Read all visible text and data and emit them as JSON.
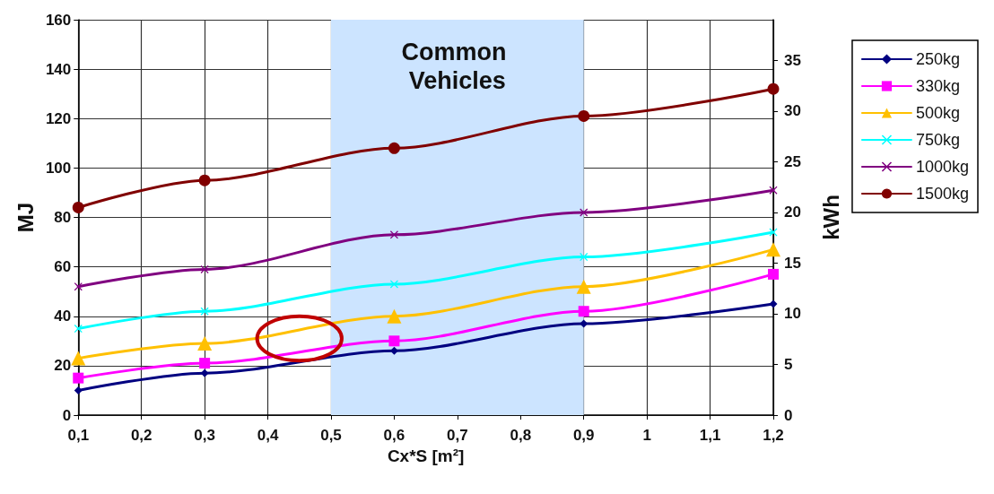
{
  "chart_data": {
    "type": "line",
    "xlabel": "Cx*S [m²]",
    "ylabel": "MJ",
    "y2label": "kWh",
    "x": [
      0.1,
      0.3,
      0.6,
      0.9,
      1.2
    ],
    "series": [
      {
        "name": "250kg",
        "color": "#000080",
        "marker": "diamond",
        "values": [
          10,
          17,
          26,
          37,
          45
        ]
      },
      {
        "name": "330kg",
        "color": "#ff00ff",
        "marker": "square",
        "values": [
          15,
          21,
          30,
          42,
          57
        ]
      },
      {
        "name": "500kg",
        "color": "#ffc000",
        "marker": "triangle",
        "values": [
          23,
          29,
          40,
          52,
          67
        ]
      },
      {
        "name": "750kg",
        "color": "#00ffff",
        "marker": "cross",
        "values": [
          35,
          42,
          53,
          64,
          74
        ]
      },
      {
        "name": "1000kg",
        "color": "#800080",
        "marker": "cross",
        "values": [
          52,
          59,
          73,
          82,
          91
        ]
      },
      {
        "name": "1500kg",
        "color": "#800000",
        "marker": "circle",
        "values": [
          84,
          95,
          108,
          121,
          132
        ]
      }
    ],
    "xlim": [
      0.1,
      1.2
    ],
    "xticks": [
      {
        "value": 0.1,
        "label": "0,1"
      },
      {
        "value": 0.2,
        "label": "0,2"
      },
      {
        "value": 0.3,
        "label": "0,3"
      },
      {
        "value": 0.4,
        "label": "0,4"
      },
      {
        "value": 0.5,
        "label": "0,5"
      },
      {
        "value": 0.6,
        "label": "0,6"
      },
      {
        "value": 0.7,
        "label": "0,7"
      },
      {
        "value": 0.8,
        "label": "0,8"
      },
      {
        "value": 0.9,
        "label": "0,9"
      },
      1,
      {
        "value": 1.1,
        "label": "1,1"
      },
      {
        "value": 1.2,
        "label": "1,2"
      }
    ],
    "ylim": [
      0,
      160
    ],
    "yticks": [
      0,
      20,
      40,
      60,
      80,
      100,
      120,
      140,
      160
    ],
    "y2lim": [
      0,
      39
    ],
    "y2ticks": [
      0,
      5,
      10,
      15,
      20,
      25,
      30,
      35
    ],
    "bands": [
      {
        "axis": "x",
        "from": 0.5,
        "to": 0.9,
        "label": "Common Vehicles",
        "color": "#cce4ff"
      }
    ],
    "grid": true,
    "legend": "right",
    "line_style": "solid"
  }
}
